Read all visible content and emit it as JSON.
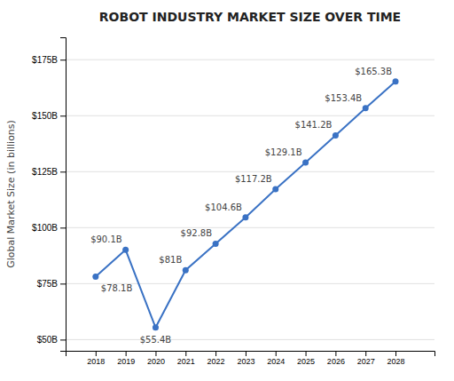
{
  "chart_data": {
    "type": "line",
    "title": "ROBOT INDUSTRY MARKET SIZE OVER TIME",
    "ylabel": "Global Market Size (in billions)",
    "x": [
      2018,
      2019,
      2020,
      2021,
      2022,
      2023,
      2024,
      2025,
      2026,
      2027,
      2028
    ],
    "values": [
      78.1,
      90.1,
      55.4,
      81.0,
      92.8,
      104.6,
      117.2,
      129.1,
      141.2,
      153.4,
      165.3
    ],
    "value_labels": [
      "$78.1B",
      "$90.1B",
      "$55.4B",
      "$81B",
      "$92.8B",
      "$104.6B",
      "$117.2B",
      "$129.1B",
      "$141.2B",
      "$153.4B",
      "$165.3B"
    ],
    "data_labels": true,
    "color": "#3a72c4",
    "marker": "circle",
    "xlim": [
      2017.0,
      2029.3
    ],
    "xticks": [
      2018,
      2019,
      2020,
      2021,
      2022,
      2023,
      2024,
      2025,
      2026,
      2027,
      2028
    ],
    "ylim": [
      45,
      185
    ],
    "yticks": [
      {
        "value": 50,
        "label": "$50B"
      },
      {
        "value": 75,
        "label": "$75B"
      },
      {
        "value": 100,
        "label": "$100B"
      },
      {
        "value": 125,
        "label": "$125B"
      },
      {
        "value": 150,
        "label": "$150B"
      },
      {
        "value": 175,
        "label": "$175B"
      }
    ],
    "grid": true
  }
}
